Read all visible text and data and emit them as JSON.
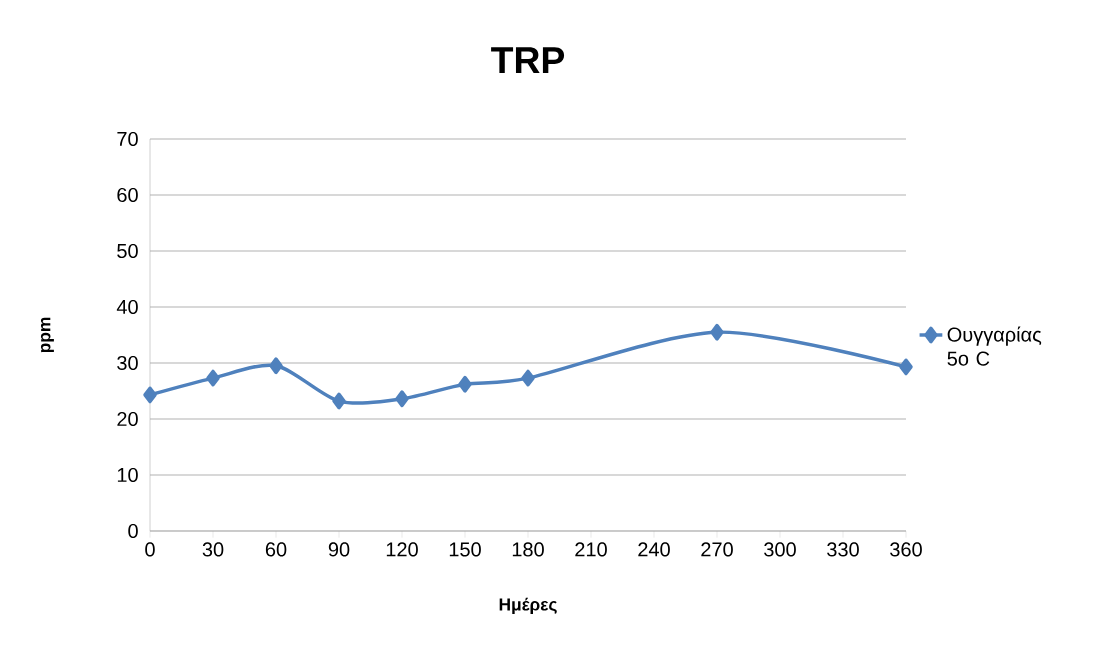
{
  "chart_data": {
    "type": "line",
    "title": "TRP",
    "xlabel": "Ημέρες",
    "ylabel": "ppm",
    "categories": [
      "0",
      "30",
      "60",
      "90",
      "120",
      "150",
      "180",
      "210",
      "240",
      "270",
      "300",
      "330",
      "360"
    ],
    "series": [
      {
        "name": "Ουγγαρίας 5ο C",
        "color": "#4f81bd",
        "values": [
          24.3,
          27.3,
          29.5,
          23.2,
          23.6,
          26.2,
          27.3,
          null,
          null,
          35.5,
          null,
          null,
          29.3
        ]
      }
    ],
    "ylim": [
      0,
      70
    ],
    "yticks": [
      0,
      10,
      20,
      30,
      40,
      50,
      60,
      70
    ],
    "grid": "y",
    "legend": "right",
    "marker": "diamond",
    "line_style": "solid"
  }
}
